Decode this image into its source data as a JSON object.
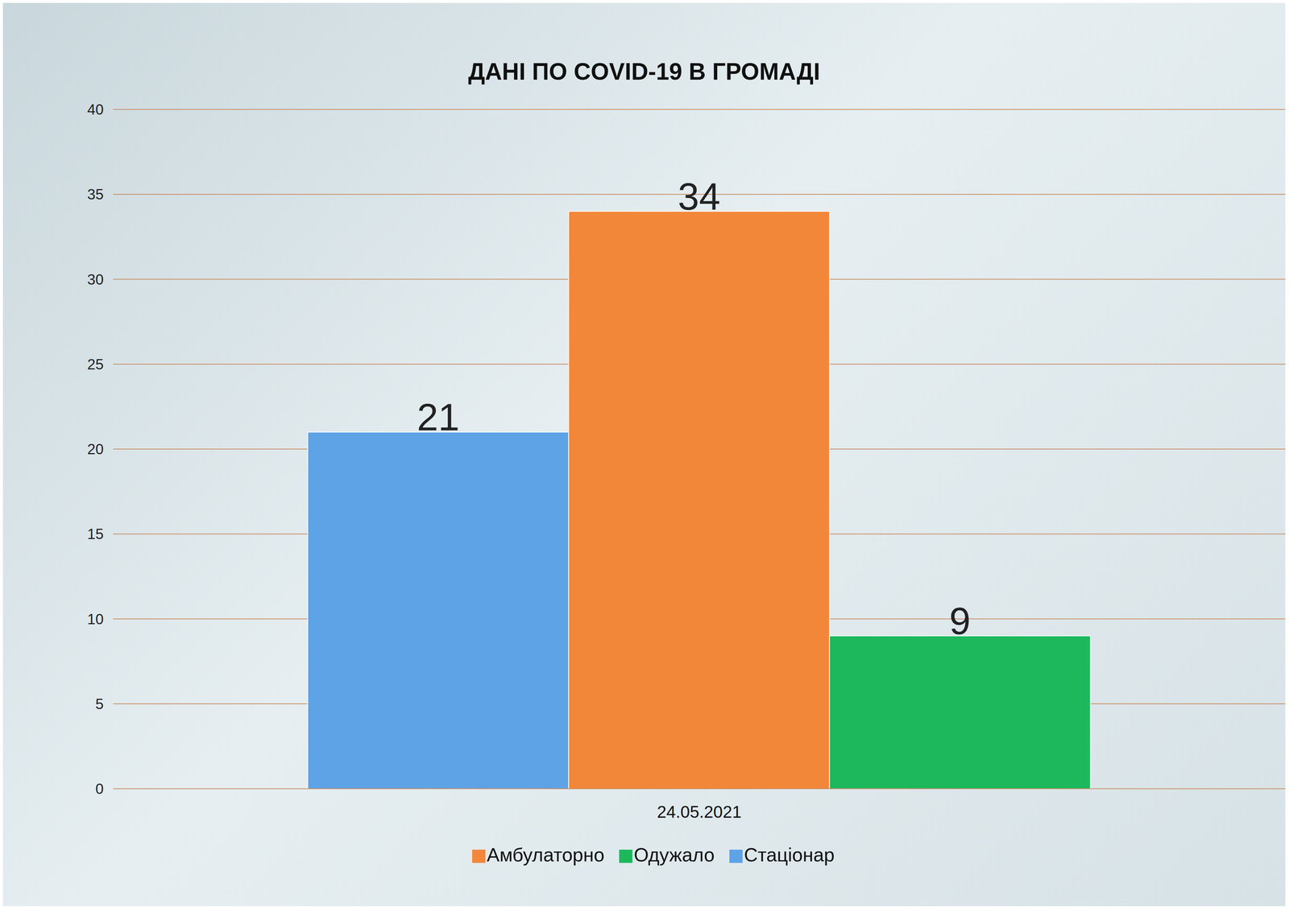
{
  "chart_data": {
    "type": "bar",
    "title": "ДАНІ ПО COVID-19 В ГРОМАДІ",
    "categories": [
      "24.05.2021"
    ],
    "series": [
      {
        "name": "Стаціонар",
        "color": "#5ea3e6",
        "values": [
          21
        ]
      },
      {
        "name": "Амбулаторно",
        "color": "#f2873a",
        "values": [
          34
        ]
      },
      {
        "name": "Одужало",
        "color": "#1db85c",
        "values": [
          9
        ]
      }
    ],
    "ylim": [
      0,
      40
    ],
    "yticks": [
      0,
      5,
      10,
      15,
      20,
      25,
      30,
      35,
      40
    ],
    "grid": true,
    "legend": "bottom",
    "data_labels": true
  }
}
